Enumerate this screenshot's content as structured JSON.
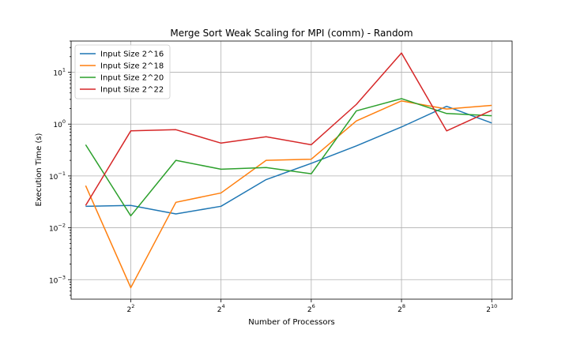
{
  "chart_data": {
    "type": "line",
    "title": "Merge Sort Weak Scaling for MPI (comm) - Random",
    "xlabel": "Number of Processors",
    "ylabel": "Execution Time (s)",
    "x_scale": "log2",
    "y_scale": "log10",
    "grid": true,
    "legend_position": "top-left",
    "x": [
      2,
      4,
      8,
      16,
      32,
      64,
      128,
      256,
      512,
      1024
    ],
    "xlim": [
      1.6,
      1400
    ],
    "ylim": [
      0.00042,
      40
    ],
    "x_ticks": [
      {
        "value": 4,
        "base": "2",
        "exp": "2"
      },
      {
        "value": 16,
        "base": "2",
        "exp": "4"
      },
      {
        "value": 64,
        "base": "2",
        "exp": "6"
      },
      {
        "value": 256,
        "base": "2",
        "exp": "8"
      },
      {
        "value": 1024,
        "base": "2",
        "exp": "10"
      }
    ],
    "y_ticks": [
      {
        "value": 0.001,
        "base": "10",
        "exp": "−3"
      },
      {
        "value": 0.01,
        "base": "10",
        "exp": "−2"
      },
      {
        "value": 0.1,
        "base": "10",
        "exp": "−1"
      },
      {
        "value": 1,
        "base": "10",
        "exp": "0"
      },
      {
        "value": 10,
        "base": "10",
        "exp": "1"
      }
    ],
    "series": [
      {
        "name": "Input Size 2^16",
        "color": "#1f77b4",
        "values": [
          0.026,
          0.027,
          0.0185,
          0.026,
          0.085,
          0.175,
          0.38,
          0.88,
          2.2,
          1.05
        ]
      },
      {
        "name": "Input Size 2^18",
        "color": "#ff7f0e",
        "values": [
          0.065,
          0.0007,
          0.031,
          0.047,
          0.2,
          0.21,
          1.15,
          2.8,
          1.95,
          2.3
        ]
      },
      {
        "name": "Input Size 2^20",
        "color": "#2ca02c",
        "values": [
          0.4,
          0.017,
          0.2,
          0.135,
          0.145,
          0.11,
          1.8,
          3.1,
          1.6,
          1.45
        ]
      },
      {
        "name": "Input Size 2^22",
        "color": "#d62728",
        "values": [
          0.027,
          0.74,
          0.78,
          0.43,
          0.57,
          0.4,
          2.4,
          23.5,
          0.74,
          1.85
        ]
      }
    ]
  }
}
